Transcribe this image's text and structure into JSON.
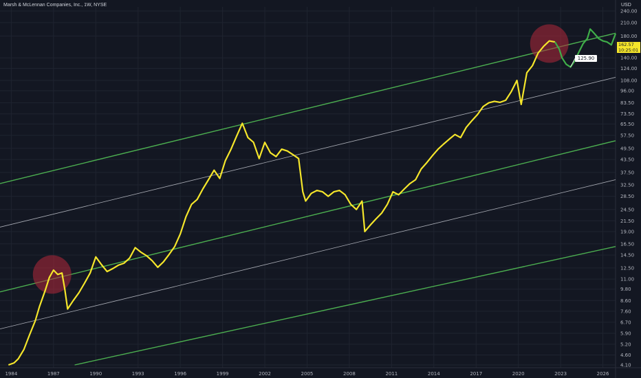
{
  "header": {
    "title": "Marsh & McLennan Companies, Inc., 1W, NYSE",
    "currency": "USD"
  },
  "price_badge": {
    "price": "162.57",
    "countdown": "10:25:01"
  },
  "annotation": "125.90",
  "colors": {
    "background": "#131722",
    "price_line": "#f5e62b",
    "projection_line": "#3fae49",
    "channel_green": "#4caf50",
    "channel_white": "#d1d4dc",
    "highlight_circle": "#b2283a"
  },
  "chart_data": {
    "type": "line",
    "title": "Marsh & McLennan Companies, Inc., 1W, NYSE",
    "scale": "log",
    "ylim": [
      4.1,
      240
    ],
    "y_ticks": [
      "240.00",
      "210.00",
      "180.00",
      "140.00",
      "124.00",
      "108.00",
      "96.00",
      "83.50",
      "73.50",
      "65.50",
      "57.50",
      "49.50",
      "43.50",
      "37.50",
      "32.50",
      "28.50",
      "24.50",
      "21.50",
      "19.00",
      "16.50",
      "14.50",
      "12.50",
      "11.00",
      "9.80",
      "8.60",
      "7.60",
      "6.70",
      "5.90",
      "5.20",
      "4.60",
      "4.10"
    ],
    "x_ticks": [
      "1984",
      "1987",
      "1990",
      "1993",
      "1996",
      "1999",
      "2002",
      "2005",
      "2008",
      "2011",
      "2014",
      "2017",
      "2020",
      "2023",
      "2026"
    ],
    "xlim": [
      1983.2,
      2026.9
    ],
    "series": [
      {
        "x": [
          1983.8,
          1984.2,
          1984.5,
          1984.9,
          1985.3,
          1985.7,
          1986.0,
          1986.4,
          1986.7,
          1987.0,
          1987.3,
          1987.6,
          1987.8,
          1988.0,
          1988.4,
          1988.8,
          1989.2,
          1989.6,
          1990.0,
          1990.4,
          1990.8,
          1991.2,
          1991.6,
          1992.0,
          1992.4,
          1992.8,
          1993.2,
          1993.6,
          1994.0,
          1994.4,
          1994.8,
          1995.2,
          1995.6,
          1996.0,
          1996.4,
          1996.8,
          1997.2,
          1997.6,
          1998.0,
          1998.4,
          1998.8,
          1999.2,
          1999.6,
          2000.0,
          2000.4,
          2000.8,
          2001.2,
          2001.6,
          2002.0,
          2002.4,
          2002.8,
          2003.2,
          2003.6,
          2004.0,
          2004.4,
          2004.7,
          2004.9,
          2005.3,
          2005.7,
          2006.1,
          2006.5,
          2006.9,
          2007.3,
          2007.7,
          2008.1,
          2008.5,
          2008.9,
          2009.1,
          2009.5,
          2009.9,
          2010.3,
          2010.7,
          2011.1,
          2011.5,
          2011.9,
          2012.3,
          2012.7,
          2013.1,
          2013.5,
          2013.9,
          2014.3,
          2014.7,
          2015.1,
          2015.5,
          2015.9,
          2016.3,
          2016.7,
          2017.1,
          2017.5,
          2017.9,
          2018.3,
          2018.7,
          2019.1,
          2019.5,
          2019.9,
          2020.2,
          2020.6,
          2021.0,
          2021.4,
          2021.8,
          2022.2,
          2022.6
        ],
        "values": [
          4.1,
          4.2,
          4.4,
          4.9,
          5.8,
          6.8,
          8.0,
          9.6,
          11.2,
          12.2,
          11.6,
          11.8,
          9.8,
          7.8,
          8.6,
          9.4,
          10.5,
          11.8,
          14.2,
          13.0,
          12.0,
          12.4,
          12.9,
          13.2,
          14.0,
          15.8,
          15.0,
          14.4,
          13.6,
          12.6,
          13.4,
          14.6,
          16.0,
          18.5,
          22.5,
          26.0,
          27.5,
          31.0,
          34.5,
          38.5,
          35.0,
          43.0,
          49.0,
          57.0,
          66.0,
          56.0,
          53.0,
          44.0,
          53.0,
          47.0,
          45.0,
          49.0,
          48.0,
          46.0,
          44.0,
          30.0,
          27.0,
          29.5,
          30.5,
          30.0,
          28.5,
          30.0,
          30.5,
          29.0,
          26.0,
          24.5,
          27.0,
          19.0,
          20.5,
          22.0,
          23.5,
          26.0,
          30.0,
          29.0,
          31.0,
          33.0,
          34.5,
          39.0,
          42.0,
          45.5,
          49.0,
          52.0,
          55.0,
          58.0,
          56.0,
          63.0,
          68.0,
          73.0,
          80.0,
          83.5,
          85.0,
          84.0,
          86.0,
          95.0,
          108.0,
          82.0,
          118.0,
          128.0,
          148.0,
          160.0,
          170.0,
          168.0
        ]
      },
      {
        "x": [
          2022.6,
          2022.9,
          2023.1,
          2023.4,
          2023.7,
          2024.0,
          2024.3,
          2024.6,
          2024.9,
          2025.1,
          2025.4,
          2025.7,
          2026.0,
          2026.3,
          2026.6,
          2026.9
        ],
        "values": [
          168.0,
          155.0,
          140.0,
          130.0,
          125.9,
          135.0,
          150.0,
          165.0,
          175.0,
          195.0,
          185.0,
          175.0,
          170.0,
          168.0,
          162.57,
          185.0
        ]
      }
    ],
    "channels": [
      {
        "color": "green",
        "points": [
          [
            1983.2,
            33.0
          ],
          [
            2026.9,
            186.0
          ]
        ]
      },
      {
        "color": "white",
        "points": [
          [
            1983.2,
            20.0
          ],
          [
            2026.9,
            112.0
          ]
        ]
      },
      {
        "color": "green",
        "points": [
          [
            1983.2,
            9.5
          ],
          [
            2026.9,
            54.0
          ]
        ]
      },
      {
        "color": "white",
        "points": [
          [
            1983.2,
            6.2
          ],
          [
            2026.9,
            34.5
          ]
        ]
      },
      {
        "color": "green",
        "points": [
          [
            1988.5,
            4.1
          ],
          [
            2026.9,
            16.0
          ]
        ]
      }
    ],
    "highlights": [
      {
        "x": 1986.9,
        "y": 11.6
      },
      {
        "x": 2022.2,
        "y": 165.0
      }
    ],
    "grid": true,
    "legend": "none"
  }
}
